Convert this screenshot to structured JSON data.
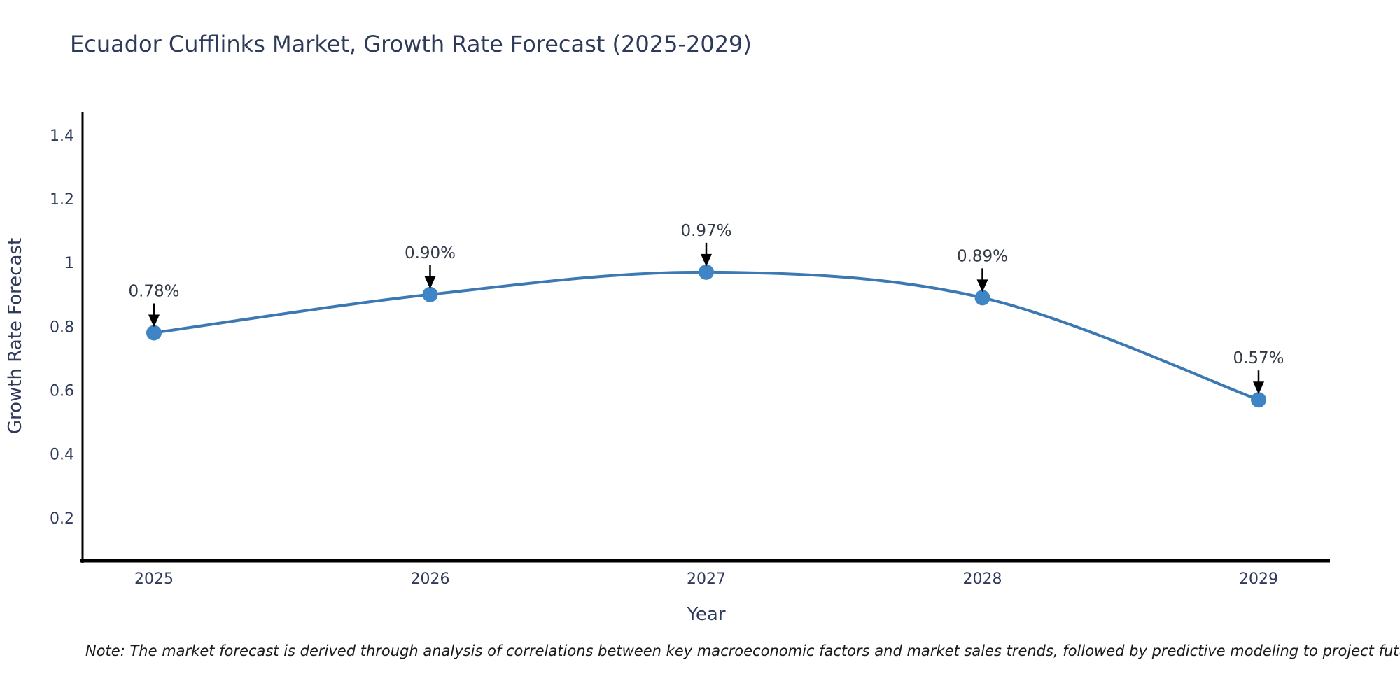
{
  "title": "Ecuador Cufflinks Market, Growth Rate Forecast (2025-2029)",
  "note": "Note: The market forecast is derived through analysis of correlations between key macroeconomic factors and market sales trends, followed by predictive modeling to project future sales",
  "chart_data": {
    "type": "line",
    "title": "Ecuador Cufflinks Market, Growth Rate Forecast (2025-2029)",
    "xlabel": "Year",
    "ylabel": "Growth Rate Forecast",
    "x": [
      "2025",
      "2026",
      "2027",
      "2028",
      "2029"
    ],
    "series": [
      {
        "name": "Growth Rate Forecast",
        "values": [
          0.78,
          0.9,
          0.97,
          0.89,
          0.57
        ]
      }
    ],
    "point_labels": [
      "0.78%",
      "0.90%",
      "0.97%",
      "0.89%",
      "0.57%"
    ],
    "yticks": [
      0.2,
      0.4,
      0.6,
      0.8,
      1.0,
      1.2,
      1.4
    ],
    "ytick_labels": [
      "0.2",
      "0.4",
      "0.6",
      "0.8",
      "1",
      "1.2",
      "1.4"
    ],
    "ylim": [
      0.066,
      1.472
    ],
    "grid": false,
    "legend": "none",
    "line_shape": "spline",
    "colors": {
      "line": "#3c79b3",
      "marker": "#3f85c6",
      "annotation_text": "#333a47",
      "annotation_arrow": "#000000",
      "axis": "#000000",
      "text": "#2e3a59",
      "background": "#ffffff"
    }
  }
}
